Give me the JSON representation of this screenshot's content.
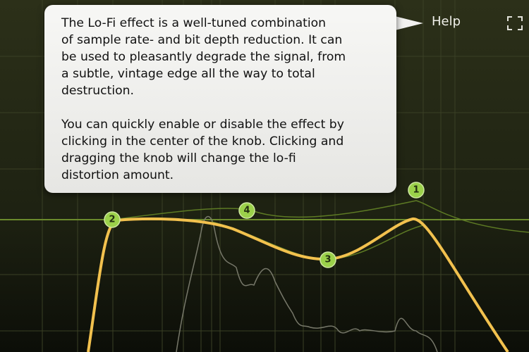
{
  "tooltip": {
    "paragraphs": [
      [
        "The Lo-Fi effect is a well-tuned combination",
        "of sample rate- and bit depth reduction. It can",
        "be used to pleasantly degrade the signal, from",
        "a subtle, vintage edge all the way to total",
        "destruction."
      ],
      [
        "You can quickly enable or disable the effect by",
        "clicking in the center of the knob. Clicking and",
        "dragging the knob will change the lo-fi",
        "distortion amount."
      ]
    ]
  },
  "header": {
    "help": "Help"
  },
  "nodes": [
    {
      "label": "1"
    },
    {
      "label": "2"
    },
    {
      "label": "3"
    },
    {
      "label": "4"
    }
  ]
}
